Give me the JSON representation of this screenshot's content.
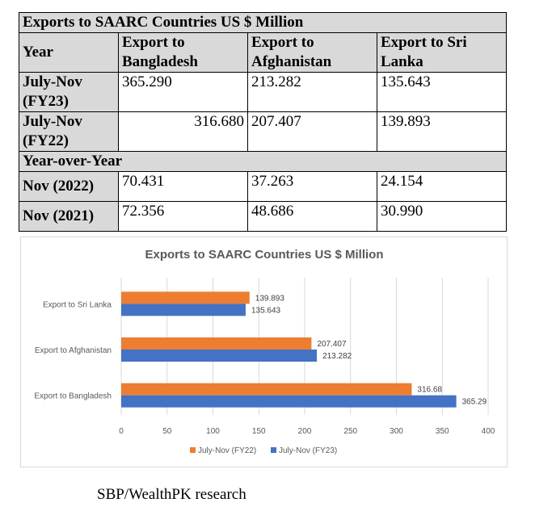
{
  "table": {
    "title": "Exports to SAARC Countries US $ Million",
    "headers": {
      "year": "Year",
      "col1_line1": "Export to",
      "col1_line2": "Bangladesh",
      "col2_line1": "Export to",
      "col2_line2": "Afghanistan",
      "col3_line1": "Export to Sri",
      "col3_line2": "Lanka"
    },
    "rows": [
      {
        "label_line1": "July-Nov",
        "label_line2": "(FY23)",
        "v1": "365.290",
        "v2": "213.282",
        "v3": "135.643"
      },
      {
        "label_line1": "July-Nov",
        "label_line2": "(FY22)",
        "v1": "316.680",
        "v2": "207.407",
        "v3": "139.893"
      }
    ],
    "yoy_label": "Year-over-Year",
    "yoy_rows": [
      {
        "label": "Nov (2022)",
        "v1": "70.431",
        "v2": "37.263",
        "v3": "24.154"
      },
      {
        "label": "Nov (2021)",
        "v1": "72.356",
        "v2": "48.686",
        "v3": "30.990"
      }
    ]
  },
  "chart_data": {
    "type": "bar",
    "orientation": "horizontal",
    "title": "Exports to SAARC Countries US $ Million",
    "categories": [
      "Export to Bangladesh",
      "Export to Afghanistan",
      "Export to Sri Lanka"
    ],
    "series": [
      {
        "name": "July-Nov (FY22)",
        "color": "#ed7d31",
        "values": [
          316.68,
          207.407,
          139.893
        ],
        "labels": [
          "316.68",
          "207.407",
          "139.893"
        ]
      },
      {
        "name": "July-Nov (FY23)",
        "color": "#4472c4",
        "values": [
          365.29,
          213.282,
          135.643
        ],
        "labels": [
          "365.29",
          "213.282",
          "135.643"
        ]
      }
    ],
    "xlim": [
      0,
      400
    ],
    "xticks": [
      "0",
      "50",
      "100",
      "150",
      "200",
      "250",
      "300",
      "350",
      "400"
    ],
    "grid": true,
    "legend": "bottom"
  },
  "caption": "SBP/WealthPK research"
}
